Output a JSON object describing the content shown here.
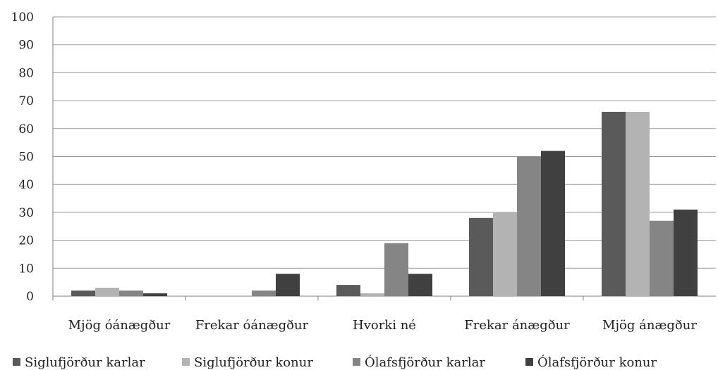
{
  "chart_data": {
    "type": "bar",
    "categories": [
      "Mjög óánægður",
      "Frekar óánægður",
      "Hvorki né",
      "Frekar ánægður",
      "Mjög ánægður"
    ],
    "series": [
      {
        "name": "Siglufjörður karlar",
        "color": "#5a5a5a",
        "values": [
          2,
          0,
          4,
          28,
          66
        ]
      },
      {
        "name": "Siglufjörður konur",
        "color": "#b3b3b3",
        "values": [
          3,
          0,
          1,
          30,
          66
        ]
      },
      {
        "name": "Ólafsfjörður karlar",
        "color": "#858585",
        "values": [
          2,
          2,
          19,
          50,
          27
        ]
      },
      {
        "name": "Ólafsfjörður konur",
        "color": "#404040",
        "values": [
          1,
          8,
          8,
          52,
          31
        ]
      }
    ],
    "ylim": [
      0,
      100
    ],
    "yticks": [
      0,
      10,
      20,
      30,
      40,
      50,
      60,
      70,
      80,
      90,
      100
    ],
    "grid": true,
    "legend_position": "bottom"
  }
}
